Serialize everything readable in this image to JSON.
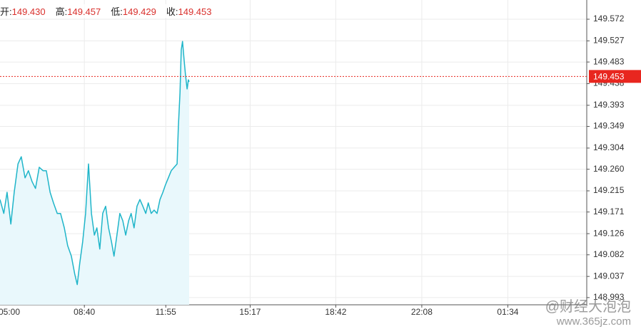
{
  "header": {
    "items": [
      {
        "label": "开:",
        "value": "149.430"
      },
      {
        "label": "高:",
        "value": "149.457"
      },
      {
        "label": "低:",
        "value": "149.429"
      },
      {
        "label": "收:",
        "value": "149.453"
      }
    ]
  },
  "chart_data": {
    "type": "line",
    "color": "#1fb5c9",
    "fill": "#e9f8fc",
    "x": [
      318,
      327,
      335,
      344,
      352,
      361,
      369,
      378,
      386,
      395,
      403,
      412,
      421,
      429,
      438,
      446,
      455,
      463,
      472,
      480,
      489,
      497,
      503,
      509,
      516,
      523,
      530,
      537,
      544,
      550,
      557,
      564,
      571,
      578,
      585,
      591,
      598,
      605,
      612,
      619,
      626,
      632,
      639,
      646,
      653,
      660,
      667,
      673,
      680,
      687,
      694,
      701,
      708,
      714,
      721,
      728,
      735,
      742,
      745,
      749,
      752,
      755,
      759,
      762,
      766,
      769,
      771
    ],
    "values": [
      149.197,
      149.168,
      149.212,
      149.146,
      149.212,
      149.271,
      149.286,
      149.242,
      149.257,
      149.234,
      149.22,
      149.264,
      149.257,
      149.257,
      149.212,
      149.19,
      149.168,
      149.168,
      149.138,
      149.101,
      149.079,
      149.042,
      149.02,
      149.064,
      149.109,
      149.168,
      149.271,
      149.168,
      149.123,
      149.138,
      149.094,
      149.168,
      149.183,
      149.138,
      149.109,
      149.079,
      149.123,
      149.168,
      149.153,
      149.123,
      149.153,
      149.168,
      149.138,
      149.183,
      149.197,
      149.183,
      149.168,
      149.19,
      149.168,
      149.175,
      149.168,
      149.197,
      149.212,
      149.227,
      149.242,
      149.257,
      149.264,
      149.271,
      149.346,
      149.42,
      149.508,
      149.526,
      149.486,
      149.457,
      149.427,
      149.446,
      149.442
    ],
    "last_value": 149.453,
    "last_color": "#e8261f",
    "xlim": [
      318,
      1723
    ],
    "xticks": [
      {
        "value": 300,
        "label": "05:00"
      },
      {
        "value": 520,
        "label": "08:40"
      },
      {
        "value": 715,
        "label": "11:55"
      },
      {
        "value": 917,
        "label": "15:17"
      },
      {
        "value": 1122,
        "label": "18:42"
      },
      {
        "value": 1328,
        "label": "22:08"
      },
      {
        "value": 1534,
        "label": "01:34"
      }
    ],
    "ylim": [
      148.978,
      149.612
    ],
    "yticks": [
      149.572,
      149.527,
      149.483,
      149.438,
      149.393,
      149.349,
      149.304,
      {
        "value": 149.26,
        "label": "149.260"
      },
      149.215,
      149.171,
      149.126,
      149.082,
      149.037,
      148.993
    ],
    "grid": true
  },
  "watermark": {
    "line1": "@财经大泡泡",
    "line2": "www.365jz.com"
  }
}
